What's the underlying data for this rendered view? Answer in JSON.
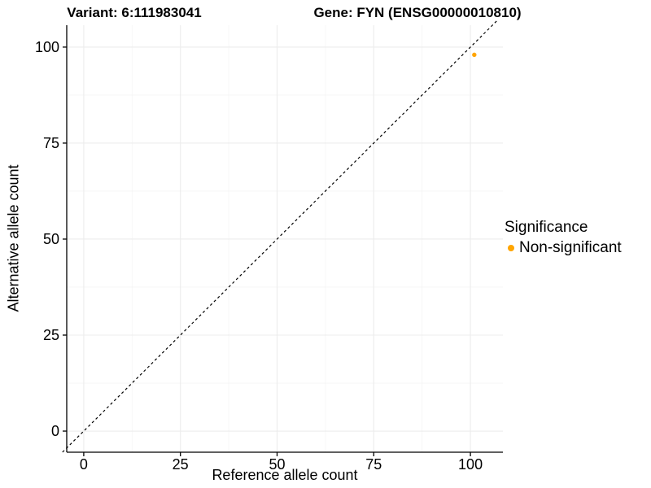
{
  "figure": {
    "titles": {
      "variant": "Variant: 6:111983041",
      "gene": "Gene: FYN (ENSG00000010810)"
    },
    "x_axis": {
      "label": "Reference allele count"
    },
    "y_axis": {
      "label": "Alternative allele count"
    },
    "legend": {
      "title": "Significance",
      "items": [
        {
          "label": "Non-significant",
          "color": "#FFA500",
          "marker": "dot"
        }
      ]
    }
  },
  "chart_data": {
    "type": "scatter",
    "title": "Variant: 6:111983041 / Gene: FYN (ENSG00000010810)",
    "xlabel": "Reference allele count",
    "ylabel": "Alternative allele count",
    "x_ticks": [
      0,
      25,
      50,
      75,
      100
    ],
    "y_ticks": [
      0,
      25,
      50,
      75,
      100
    ],
    "x_minor_ticks": [
      12.5,
      37.5,
      62.5,
      87.5
    ],
    "y_minor_ticks": [
      12.5,
      37.5,
      62.5,
      87.5
    ],
    "xlim": [
      -4.4,
      108.4
    ],
    "ylim": [
      -5.5,
      105.7
    ],
    "grid": true,
    "legend_position": "right",
    "series": [
      {
        "name": "Non-significant",
        "color": "#FFA500",
        "points": [
          {
            "x": 101,
            "y": 98
          }
        ]
      }
    ],
    "reference_line": {
      "type": "identity",
      "slope": 1,
      "intercept": 0,
      "style": "dashed",
      "color": "#000000",
      "span": [
        -5.5,
        107.2
      ]
    }
  },
  "style": {
    "point_color": "#FFA500",
    "grid_major_color": "#ececec",
    "grid_minor_color": "#f5f5f5",
    "axis_color": "#000000"
  }
}
